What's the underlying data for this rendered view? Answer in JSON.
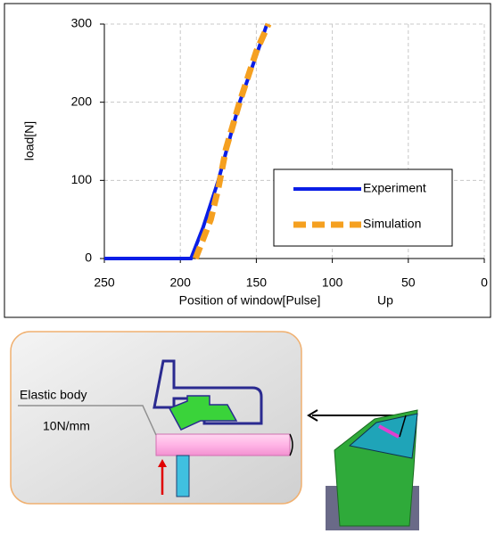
{
  "chart_data": {
    "type": "line",
    "xlabel": "Position of window[Pulse]",
    "direction_label": "Up",
    "ylabel": "load[N]",
    "xlim": [
      250,
      0
    ],
    "xticks": [
      250,
      200,
      150,
      100,
      50,
      0
    ],
    "ylim": [
      0,
      300
    ],
    "yticks": [
      0,
      100,
      200,
      300
    ],
    "grid": true,
    "legend": "lower right",
    "series": [
      {
        "name": "Experiment",
        "color": "#0a1ee6",
        "style": "solid",
        "x": [
          250,
          230,
          210,
          193,
          185,
          175,
          168,
          161,
          150,
          143
        ],
        "values": [
          0,
          0,
          0,
          0,
          40,
          100,
          150,
          200,
          260,
          300
        ]
      },
      {
        "name": "Simulation",
        "color": "#f5a020",
        "style": "dashed",
        "x": [
          190,
          180,
          175,
          170,
          161,
          150,
          142
        ],
        "values": [
          0,
          50,
          90,
          140,
          200,
          265,
          300
        ]
      }
    ]
  },
  "diagram": {
    "label": "Elastic body",
    "stiffness": "10N/mm"
  }
}
